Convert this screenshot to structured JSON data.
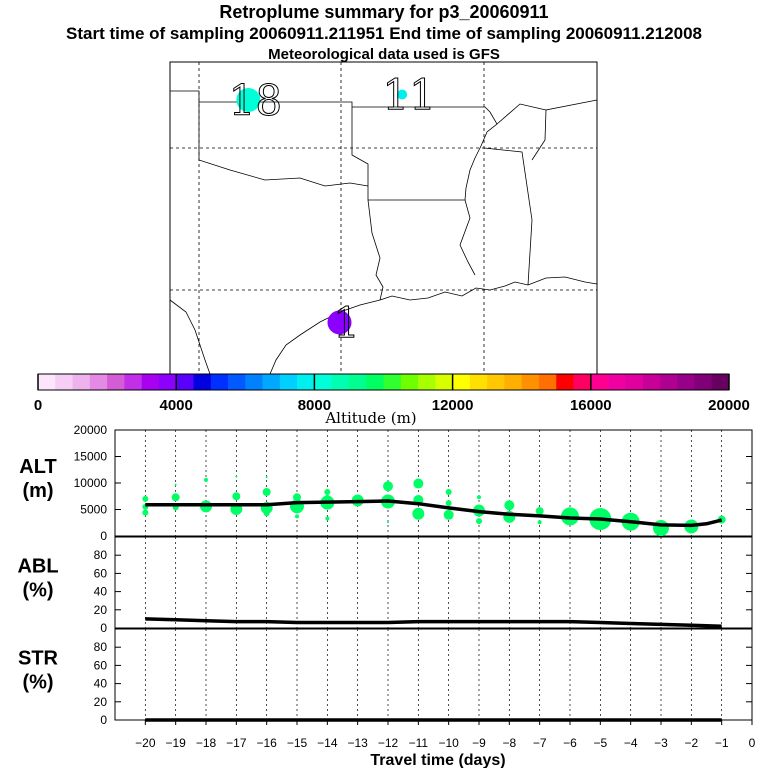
{
  "header": {
    "title": "Retroplume summary for p3_20060911",
    "sampling": "Start time of sampling 20060911.211951     End time of sampling 20060911.212008",
    "met": "Meteorological data used is GFS"
  },
  "map": {
    "labels": [
      {
        "text": "18",
        "lon": -99.0,
        "lat": 36.6,
        "dot_altitude_m": 8200,
        "dot_size": "large"
      },
      {
        "text": "11",
        "lon": -93.6,
        "lat": 36.8,
        "dot_altitude_m": 7600,
        "dot_size": "small"
      },
      {
        "text": "1",
        "lon": -95.8,
        "lat": 28.4,
        "dot_altitude_m": 3600,
        "dot_size": "large"
      }
    ]
  },
  "colorbar": {
    "min": 0,
    "max": 20000,
    "step": 4000,
    "tick_labels": [
      "0",
      "4000",
      "8000",
      "12000",
      "16000",
      "20000"
    ],
    "label": "Altitude (m)",
    "colors": [
      "#fbe6fb",
      "#f5cdf5",
      "#eeb2ee",
      "#e48ae4",
      "#d45cd4",
      "#c130e8",
      "#a800f0",
      "#8c00ff",
      "#5a00ff",
      "#0000e0",
      "#0030ff",
      "#005aff",
      "#0082ff",
      "#00a8ff",
      "#00d0ff",
      "#00f0f0",
      "#00ffd8",
      "#00ffb0",
      "#00ff90",
      "#00ff60",
      "#30ff30",
      "#70ff00",
      "#a8ff00",
      "#d8ff00",
      "#ffff00",
      "#ffe000",
      "#ffc800",
      "#ffb000",
      "#ff9000",
      "#ff7000",
      "#ff0000",
      "#ff0060",
      "#ff0090",
      "#f000a0",
      "#e000a0",
      "#c80098",
      "#b00090",
      "#980088",
      "#800078",
      "#680060"
    ]
  },
  "chart_data": [
    {
      "type": "scatter",
      "panel": "ALT",
      "ylabel": "ALT\n(m)",
      "ylabel_lines": [
        "ALT",
        "(m)"
      ],
      "ylim": [
        0,
        20000
      ],
      "yticks": [
        0,
        5000,
        10000,
        15000,
        20000
      ],
      "ytick_labels": [
        "0",
        "5000",
        "10000",
        "15000",
        "20000"
      ],
      "median_line": {
        "x": [
          -20,
          -19,
          -18,
          -17,
          -16,
          -15,
          -14,
          -13,
          -12,
          -11,
          -10,
          -9,
          -8,
          -7,
          -6,
          -5,
          -4,
          -3,
          -2,
          -1.5,
          -1
        ],
        "y": [
          5900,
          5900,
          5900,
          5900,
          5900,
          6300,
          6400,
          6500,
          6600,
          6100,
          5300,
          4600,
          4100,
          3800,
          3400,
          3200,
          2700,
          2100,
          2000,
          2300,
          3000
        ]
      },
      "points": [
        {
          "x": -20,
          "y": 7000,
          "r": 3
        },
        {
          "x": -20,
          "y": 5500,
          "r": 3
        },
        {
          "x": -20,
          "y": 4400,
          "r": 3
        },
        {
          "x": -19,
          "y": 9700,
          "r": 1
        },
        {
          "x": -19,
          "y": 7300,
          "r": 4
        },
        {
          "x": -19,
          "y": 5400,
          "r": 3
        },
        {
          "x": -18,
          "y": 10600,
          "r": 2
        },
        {
          "x": -18,
          "y": 5600,
          "r": 6
        },
        {
          "x": -17,
          "y": 11200,
          "r": 1
        },
        {
          "x": -17,
          "y": 7500,
          "r": 4
        },
        {
          "x": -17,
          "y": 5100,
          "r": 6
        },
        {
          "x": -16,
          "y": 11100,
          "r": 1
        },
        {
          "x": -16,
          "y": 8300,
          "r": 4
        },
        {
          "x": -16,
          "y": 5300,
          "r": 6
        },
        {
          "x": -16,
          "y": 4300,
          "r": 3
        },
        {
          "x": -15,
          "y": 7300,
          "r": 4
        },
        {
          "x": -15,
          "y": 5600,
          "r": 7
        },
        {
          "x": -15,
          "y": 3700,
          "r": 2
        },
        {
          "x": -14,
          "y": 8300,
          "r": 3
        },
        {
          "x": -14,
          "y": 7400,
          "r": 2
        },
        {
          "x": -14,
          "y": 6300,
          "r": 7
        },
        {
          "x": -14,
          "y": 3300,
          "r": 2
        },
        {
          "x": -13,
          "y": 6700,
          "r": 6
        },
        {
          "x": -12,
          "y": 9400,
          "r": 5
        },
        {
          "x": -12,
          "y": 6500,
          "r": 7
        },
        {
          "x": -12,
          "y": 2600,
          "r": 1
        },
        {
          "x": -11,
          "y": 9900,
          "r": 5
        },
        {
          "x": -11,
          "y": 6800,
          "r": 5
        },
        {
          "x": -11,
          "y": 4200,
          "r": 6
        },
        {
          "x": -10,
          "y": 8300,
          "r": 3
        },
        {
          "x": -10,
          "y": 6200,
          "r": 3
        },
        {
          "x": -10,
          "y": 4000,
          "r": 5
        },
        {
          "x": -9,
          "y": 7300,
          "r": 2
        },
        {
          "x": -9,
          "y": 4800,
          "r": 6
        },
        {
          "x": -9,
          "y": 2800,
          "r": 3
        },
        {
          "x": -8,
          "y": 5800,
          "r": 5
        },
        {
          "x": -8,
          "y": 3600,
          "r": 6
        },
        {
          "x": -7,
          "y": 4700,
          "r": 4
        },
        {
          "x": -7,
          "y": 2600,
          "r": 2
        },
        {
          "x": -6,
          "y": 3700,
          "r": 9
        },
        {
          "x": -5,
          "y": 3200,
          "r": 11
        },
        {
          "x": -4,
          "y": 2700,
          "r": 9
        },
        {
          "x": -3,
          "y": 1500,
          "r": 8
        },
        {
          "x": -2,
          "y": 1800,
          "r": 7
        },
        {
          "x": -1,
          "y": 3100,
          "r": 4
        }
      ],
      "point_color": "#00ff66"
    },
    {
      "type": "line",
      "panel": "ABL",
      "ylabel": "ABL\n(%)",
      "ylabel_lines": [
        "ABL",
        "(%)"
      ],
      "ylim": [
        0,
        100
      ],
      "yticks": [
        0,
        20,
        40,
        60,
        80
      ],
      "ytick_labels": [
        "0",
        "20",
        "40",
        "60",
        "80"
      ],
      "x": [
        -20,
        -19,
        -18,
        -17,
        -16,
        -15,
        -14,
        -13,
        -12,
        -11,
        -10,
        -9,
        -8,
        -7,
        -6,
        -5,
        -4,
        -3,
        -2,
        -1
      ],
      "y": [
        10,
        9,
        8,
        7,
        7,
        6,
        6,
        6,
        6,
        7,
        7,
        7,
        7,
        7,
        7,
        6,
        5,
        4,
        3,
        2
      ]
    },
    {
      "type": "line",
      "panel": "STR",
      "ylabel": "STR\n(%)",
      "ylabel_lines": [
        "STR",
        "(%)"
      ],
      "ylim": [
        0,
        100
      ],
      "yticks": [
        0,
        20,
        40,
        60,
        80
      ],
      "ytick_labels": [
        "0",
        "20",
        "40",
        "60",
        "80"
      ],
      "x": [
        -20,
        -19,
        -18,
        -17,
        -16,
        -15,
        -14,
        -13,
        -12,
        -11,
        -10,
        -9,
        -8,
        -7,
        -6,
        -5,
        -4,
        -3,
        -2,
        -1
      ],
      "y": [
        0,
        0,
        0,
        0,
        0,
        0,
        0,
        0,
        0,
        0,
        0,
        0,
        0,
        0,
        0,
        0,
        0,
        0,
        0,
        0
      ]
    }
  ],
  "xaxis": {
    "xlim": [
      -21,
      0
    ],
    "ticks": [
      -20,
      -19,
      -18,
      -17,
      -16,
      -15,
      -14,
      -13,
      -12,
      -11,
      -10,
      -9,
      -8,
      -7,
      -6,
      -5,
      -4,
      -3,
      -2,
      -1,
      0
    ],
    "tick_labels": [
      "−20",
      "−19",
      "−18",
      "−17",
      "−16",
      "−15",
      "−14",
      "−13",
      "−12",
      "−11",
      "−10",
      "−9",
      "−8",
      "−7",
      "−6",
      "−5",
      "−4",
      "−3",
      "−2",
      "−1",
      "0"
    ],
    "label": "Travel time (days)"
  }
}
